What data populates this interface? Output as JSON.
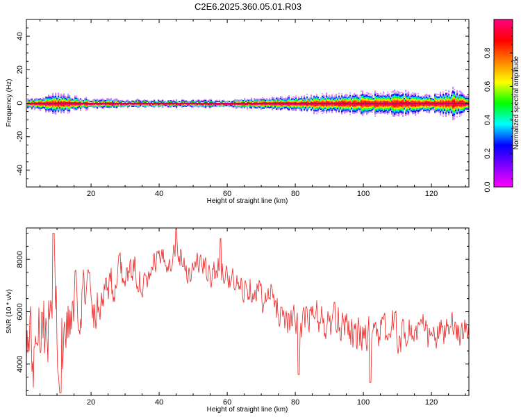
{
  "title": "C2E6.2025.360.05.01.R03",
  "chart_data": [
    {
      "type": "heatmap",
      "title": "C2E6.2025.360.05.01.R03",
      "xlabel": "Height of straight line (km)",
      "ylabel": "Frequency (Hz)",
      "xlim": [
        1,
        131
      ],
      "ylim": [
        -50,
        50
      ],
      "xticks": [
        20,
        40,
        60,
        80,
        100,
        120
      ],
      "yticks": [
        -40,
        -20,
        0,
        20,
        40
      ],
      "colorbar": {
        "label": "Normalized spectral amplitude",
        "range": [
          0,
          1
        ],
        "ticks": [
          0.0,
          0.2,
          0.4,
          0.6,
          0.8
        ],
        "colormap": [
          "#ff00ff",
          "#8000ff",
          "#0000ff",
          "#00ffff",
          "#00ff00",
          "#ffff00",
          "#ff8000",
          "#ff0000",
          "#ff0080"
        ]
      },
      "description_of_data": "energy concentrated at 0 Hz across all heights; spread grows between 80 and 130 km",
      "center_frequency_hz": 0,
      "spread_profile": {
        "height_km": [
          1,
          10,
          20,
          40,
          60,
          80,
          90,
          100,
          110,
          120,
          126,
          131
        ],
        "half_width_hz": [
          2,
          4,
          2,
          1.5,
          1.5,
          3,
          4,
          4.5,
          5,
          4,
          6,
          3
        ]
      }
    },
    {
      "type": "line",
      "xlabel": "Height of straight line (km)",
      "ylabel": "SNR (10 * v/v)",
      "xlim": [
        1,
        131
      ],
      "ylim": [
        2800,
        9200
      ],
      "xticks": [
        20,
        40,
        60,
        80,
        100,
        120
      ],
      "yticks": [
        4000,
        6000,
        8000
      ],
      "series": [
        {
          "name": "SNR",
          "color": "#ee2222",
          "x": [
            1,
            3,
            5,
            7,
            9,
            11,
            13,
            15,
            17,
            19,
            21,
            23,
            25,
            27,
            29,
            31,
            33,
            35,
            37,
            39,
            41,
            43,
            45,
            47,
            49,
            51,
            53,
            55,
            57,
            59,
            61,
            63,
            65,
            67,
            69,
            71,
            73,
            75,
            77,
            79,
            81,
            83,
            85,
            87,
            89,
            91,
            93,
            95,
            97,
            99,
            101,
            103,
            105,
            107,
            109,
            111,
            113,
            115,
            117,
            119,
            121,
            123,
            125,
            127,
            129,
            131
          ],
          "y": [
            5000,
            4500,
            6200,
            5200,
            7000,
            4200,
            5400,
            6200,
            6600,
            7100,
            6000,
            6700,
            7200,
            7000,
            7600,
            7300,
            7700,
            7000,
            7000,
            8000,
            7900,
            8000,
            8500,
            8000,
            7400,
            7900,
            7800,
            7200,
            7800,
            7600,
            7200,
            7000,
            6900,
            7000,
            6900,
            6300,
            6600,
            6100,
            5900,
            5600,
            5400,
            5700,
            5800,
            5800,
            5400,
            5600,
            5500,
            5800,
            5200,
            5000,
            5300,
            5600,
            5200,
            5200,
            5500,
            5000,
            5300,
            5200,
            5400,
            5000,
            5000,
            5200,
            5300,
            5300,
            5200,
            5400
          ],
          "noise_amplitude_profile": {
            "height_km": [
              1,
              10,
              20,
              40,
              60,
              80,
              100,
              120,
              131
            ],
            "amplitude": [
              2200,
              2400,
              1200,
              700,
              700,
              900,
              1000,
              900,
              700
            ]
          },
          "notable_peaks": [
            {
              "x": 9,
              "y": 9000
            },
            {
              "x": 45,
              "y": 9200
            },
            {
              "x": 58,
              "y": 8800
            }
          ],
          "notable_troughs": [
            {
              "x": 11,
              "y": 2900
            },
            {
              "x": 81,
              "y": 3600
            },
            {
              "x": 102,
              "y": 3300
            }
          ]
        }
      ]
    }
  ]
}
